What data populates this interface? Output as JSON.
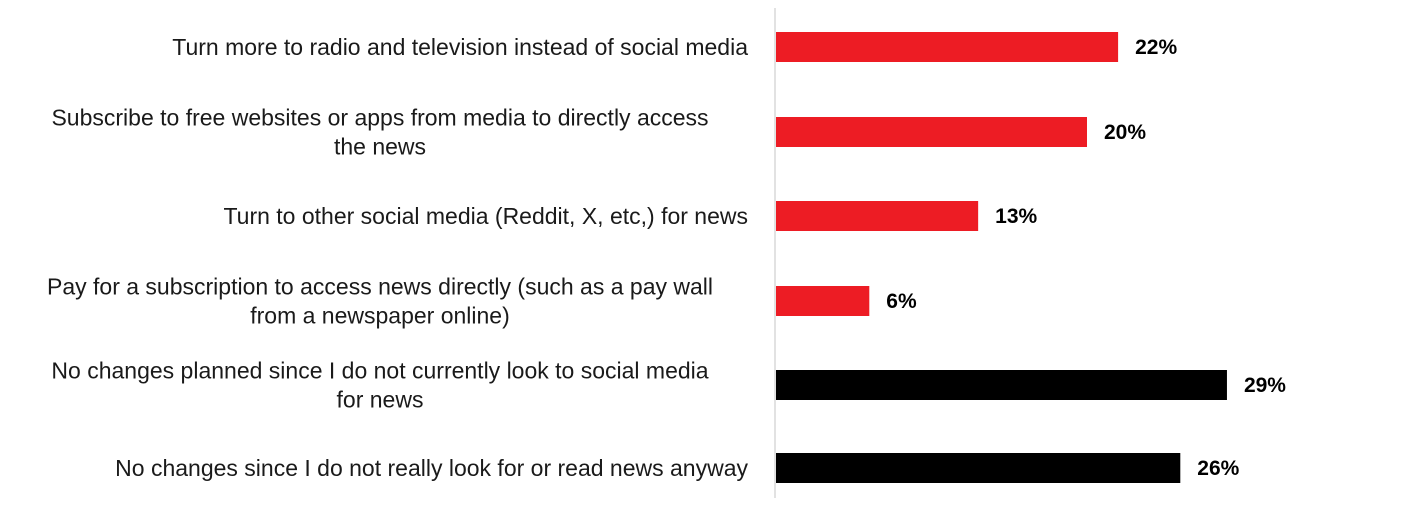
{
  "chart_data": {
    "type": "bar",
    "orientation": "horizontal",
    "categories": [
      "Turn more to radio and television instead of social media",
      "Subscribe to free websites or apps from media to directly access the news",
      "Turn to other social media (Reddit, X, etc,) for news",
      "Pay for a subscription to access news directly (such as a pay wall from a newspaper online)",
      "No changes planned since I do not currently look to social media for news",
      "No changes since I do not really look for or read news anyway"
    ],
    "category_lines": [
      [
        "Turn more to radio and television instead of social media"
      ],
      [
        "Subscribe to free websites or apps from media to directly access",
        "the news"
      ],
      [
        "Turn to other social media (Reddit, X, etc,) for news"
      ],
      [
        "Pay for a subscription to access news directly (such as a pay wall",
        "from a newspaper online)"
      ],
      [
        "No changes planned since I do not currently look to social media",
        "for news"
      ],
      [
        "No changes since I do not really look for or read news anyway"
      ]
    ],
    "values": [
      22,
      20,
      13,
      6,
      29,
      26
    ],
    "value_labels": [
      "22%",
      "20%",
      "13%",
      "6%",
      "29%",
      "26%"
    ],
    "bar_colors": [
      "#ed1c24",
      "#ed1c24",
      "#ed1c24",
      "#ed1c24",
      "#000000",
      "#000000"
    ],
    "axis_color": "#d9d9d9",
    "grid": false,
    "legend": "none",
    "xlim": [
      0,
      29
    ]
  }
}
